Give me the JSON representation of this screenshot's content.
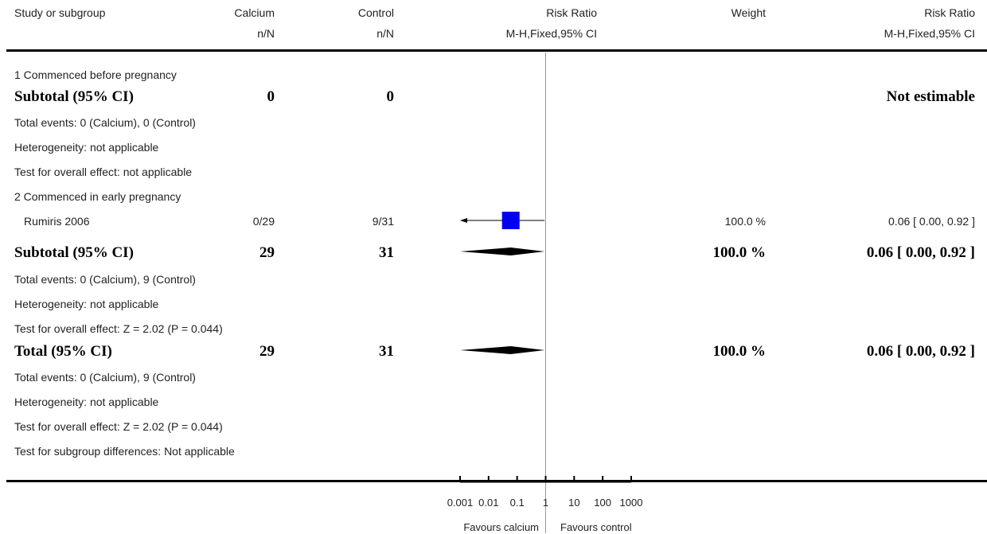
{
  "header": {
    "study_col": "Study or subgroup",
    "calcium": "Calcium",
    "control": "Control",
    "rr_plot": "Risk Ratio",
    "weight": "Weight",
    "rr_text": "Risk Ratio",
    "nN_calcium": "n/N",
    "nN_control": "n/N",
    "method_plot": "M-H,Fixed,95% CI",
    "method_text": "M-H,Fixed,95% CI"
  },
  "groups": [
    {
      "heading": "1 Commenced before pregnancy",
      "subtotal": {
        "label": "Subtotal (95% CI)",
        "calcium": "0",
        "control": "0",
        "result": "Not estimable"
      },
      "notes": [
        "Total events: 0 (Calcium), 0 (Control)",
        "Heterogeneity: not applicable",
        "Test for overall effect: not applicable"
      ]
    },
    {
      "heading": "2 Commenced in early pregnancy",
      "study": {
        "name": "Rumiris 2006",
        "calcium": "0/29",
        "control": "9/31",
        "weight": "100.0 %",
        "ci": "0.06 [ 0.00, 0.92 ]"
      },
      "subtotal": {
        "label": "Subtotal (95% CI)",
        "calcium": "29",
        "control": "31",
        "weight": "100.0 %",
        "ci": "0.06 [ 0.00, 0.92 ]"
      },
      "notes": [
        "Total events: 0 (Calcium), 9 (Control)",
        "Heterogeneity: not applicable",
        "Test for overall effect: Z = 2.02 (P = 0.044)"
      ]
    }
  ],
  "total": {
    "label": "Total (95% CI)",
    "calcium": "29",
    "control": "31",
    "weight": "100.0 %",
    "ci": "0.06 [ 0.00, 0.92 ]",
    "notes": [
      "Total events: 0 (Calcium), 9 (Control)",
      "Heterogeneity: not applicable",
      "Test for overall effect: Z = 2.02 (P = 0.044)",
      "Test for subgroup differences: Not applicable"
    ]
  },
  "axis": {
    "ticks": [
      "0.001",
      "0.01",
      "0.1",
      "1",
      "10",
      "100",
      "1000"
    ],
    "favours_left": "Favours calcium",
    "favours_right": "Favours control"
  },
  "colors": {
    "study_marker": "#0000ee",
    "diamond": "#000000",
    "line": "#000000",
    "null_line": "#999999"
  },
  "chart_data": {
    "type": "forest",
    "scale": "log",
    "xlim": [
      0.001,
      1000
    ],
    "null_value": 1,
    "rows": [
      {
        "label": "Rumiris 2006",
        "kind": "study",
        "estimate": 0.06,
        "lower": 0.001,
        "upper": 0.92,
        "lower_clipped": true,
        "weight_percent": 100.0
      },
      {
        "label": "Subtotal (95% CI)",
        "kind": "diamond",
        "estimate": 0.06,
        "lower": 0.001,
        "upper": 0.92
      },
      {
        "label": "Total (95% CI)",
        "kind": "diamond",
        "estimate": 0.06,
        "lower": 0.001,
        "upper": 0.92
      }
    ]
  }
}
